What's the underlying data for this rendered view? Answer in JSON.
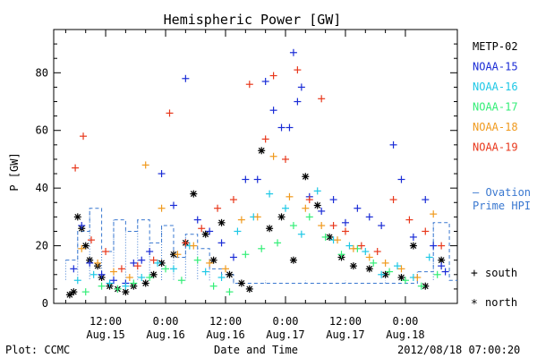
{
  "chart_data": {
    "type": "scatter",
    "title": "Hemispheric Power [GW]",
    "ylabel": "P [GW]",
    "xlabel": "Date and Time",
    "ylim": [
      0,
      95
    ],
    "y_ticks": [
      "0",
      "20",
      "40",
      "60",
      "80"
    ],
    "x_ticks": [
      {
        "time": "12:00",
        "date": "Aug.15"
      },
      {
        "time": "0:00",
        "date": "Aug.16"
      },
      {
        "time": "12:00",
        "date": "Aug.16"
      },
      {
        "time": "0:00",
        "date": "Aug.17"
      },
      {
        "time": "12:00",
        "date": "Aug.17"
      },
      {
        "time": "0:00",
        "date": "Aug.18"
      }
    ],
    "grid": false,
    "legend_position": "right",
    "legend": [
      {
        "name": "METP-02",
        "color": "#000000"
      },
      {
        "name": "NOAA-15",
        "color": "#1a2cd6"
      },
      {
        "name": "NOAA-16",
        "color": "#1ec8e6"
      },
      {
        "name": "NOAA-17",
        "color": "#33ee77"
      },
      {
        "name": "NOAA-18",
        "color": "#f09a1e"
      },
      {
        "name": "NOAA-19",
        "color": "#e8381c"
      }
    ],
    "ovation_label": [
      "— Ovation",
      "Prime HPI"
    ],
    "ovation_color": "#3a78d0",
    "marker_legend": [
      {
        "symbol": "+",
        "label": "south"
      },
      {
        "symbol": "*",
        "label": "north"
      }
    ],
    "series": [
      {
        "name": "METP-02",
        "marker": "*",
        "points": [
          [
            0.05,
            3
          ],
          [
            0.1,
            4
          ],
          [
            0.15,
            30
          ],
          [
            0.2,
            26
          ],
          [
            0.25,
            20
          ],
          [
            0.3,
            15
          ],
          [
            0.4,
            13
          ],
          [
            0.45,
            9
          ],
          [
            0.55,
            6
          ],
          [
            0.65,
            5
          ],
          [
            0.75,
            4
          ],
          [
            0.85,
            6
          ],
          [
            1.0,
            7
          ],
          [
            1.1,
            10
          ],
          [
            1.2,
            14
          ],
          [
            1.35,
            17
          ],
          [
            1.5,
            21
          ],
          [
            1.6,
            38
          ],
          [
            1.75,
            24
          ],
          [
            1.85,
            15
          ],
          [
            1.95,
            28
          ],
          [
            2.05,
            10
          ],
          [
            2.2,
            7
          ],
          [
            2.3,
            5
          ],
          [
            2.45,
            53
          ],
          [
            2.55,
            26
          ],
          [
            2.7,
            30
          ],
          [
            2.85,
            15
          ],
          [
            3.0,
            44
          ],
          [
            3.15,
            34
          ],
          [
            3.3,
            23
          ],
          [
            3.45,
            16
          ],
          [
            3.6,
            13
          ],
          [
            3.8,
            12
          ],
          [
            4.0,
            10
          ],
          [
            4.2,
            9
          ],
          [
            4.35,
            20
          ],
          [
            4.5,
            6
          ],
          [
            4.7,
            15
          ]
        ]
      },
      {
        "name": "NOAA-15",
        "marker": "+",
        "points": [
          [
            0.1,
            12
          ],
          [
            0.2,
            27
          ],
          [
            0.3,
            14
          ],
          [
            0.45,
            10
          ],
          [
            0.6,
            8
          ],
          [
            0.75,
            7
          ],
          [
            0.85,
            14
          ],
          [
            0.95,
            15
          ],
          [
            1.05,
            18
          ],
          [
            1.2,
            45
          ],
          [
            1.35,
            34
          ],
          [
            1.5,
            78
          ],
          [
            1.65,
            29
          ],
          [
            1.8,
            25
          ],
          [
            1.95,
            21
          ],
          [
            2.1,
            16
          ],
          [
            2.25,
            43
          ],
          [
            2.4,
            43
          ],
          [
            2.5,
            77
          ],
          [
            2.6,
            67
          ],
          [
            2.7,
            61
          ],
          [
            2.8,
            61
          ],
          [
            2.85,
            87
          ],
          [
            2.9,
            70
          ],
          [
            2.95,
            75
          ],
          [
            3.05,
            37
          ],
          [
            3.2,
            32
          ],
          [
            3.35,
            36
          ],
          [
            3.5,
            28
          ],
          [
            3.65,
            33
          ],
          [
            3.8,
            30
          ],
          [
            3.95,
            27
          ],
          [
            4.1,
            55
          ],
          [
            4.2,
            43
          ],
          [
            4.35,
            23
          ],
          [
            4.5,
            36
          ],
          [
            4.6,
            20
          ],
          [
            4.7,
            13
          ],
          [
            4.75,
            11
          ]
        ]
      },
      {
        "name": "NOAA-16",
        "marker": "+",
        "points": [
          [
            0.15,
            8
          ],
          [
            0.35,
            10
          ],
          [
            0.55,
            7
          ],
          [
            0.75,
            6
          ],
          [
            0.95,
            9
          ],
          [
            1.15,
            14
          ],
          [
            1.35,
            12
          ],
          [
            1.55,
            20
          ],
          [
            1.75,
            11
          ],
          [
            1.95,
            9
          ],
          [
            2.15,
            25
          ],
          [
            2.35,
            30
          ],
          [
            2.55,
            38
          ],
          [
            2.75,
            33
          ],
          [
            2.95,
            24
          ],
          [
            3.15,
            39
          ],
          [
            3.35,
            22
          ],
          [
            3.55,
            20
          ],
          [
            3.75,
            18
          ],
          [
            3.95,
            10
          ],
          [
            4.15,
            13
          ],
          [
            4.35,
            9
          ],
          [
            4.55,
            16
          ]
        ]
      },
      {
        "name": "NOAA-17",
        "marker": "+",
        "points": [
          [
            0.25,
            4
          ],
          [
            0.45,
            6
          ],
          [
            0.65,
            5
          ],
          [
            0.85,
            7
          ],
          [
            1.05,
            9
          ],
          [
            1.25,
            12
          ],
          [
            1.45,
            8
          ],
          [
            1.65,
            15
          ],
          [
            1.85,
            6
          ],
          [
            2.05,
            4
          ],
          [
            2.25,
            17
          ],
          [
            2.45,
            19
          ],
          [
            2.65,
            21
          ],
          [
            2.85,
            27
          ],
          [
            3.05,
            30
          ],
          [
            3.25,
            23
          ],
          [
            3.45,
            17
          ],
          [
            3.65,
            19
          ],
          [
            3.85,
            14
          ],
          [
            4.05,
            11
          ],
          [
            4.25,
            8
          ],
          [
            4.45,
            6
          ],
          [
            4.65,
            10
          ]
        ]
      },
      {
        "name": "NOAA-18",
        "marker": "+",
        "points": [
          [
            0.2,
            19
          ],
          [
            0.4,
            14
          ],
          [
            0.6,
            11
          ],
          [
            0.8,
            9
          ],
          [
            1.0,
            48
          ],
          [
            1.2,
            33
          ],
          [
            1.4,
            17
          ],
          [
            1.6,
            20
          ],
          [
            1.8,
            14
          ],
          [
            2.0,
            12
          ],
          [
            2.2,
            29
          ],
          [
            2.4,
            30
          ],
          [
            2.6,
            51
          ],
          [
            2.8,
            37
          ],
          [
            3.0,
            33
          ],
          [
            3.2,
            27
          ],
          [
            3.4,
            22
          ],
          [
            3.6,
            19
          ],
          [
            3.8,
            16
          ],
          [
            4.0,
            14
          ],
          [
            4.2,
            12
          ],
          [
            4.4,
            9
          ],
          [
            4.6,
            31
          ]
        ]
      },
      {
        "name": "NOAA-19",
        "marker": "+",
        "points": [
          [
            0.12,
            47
          ],
          [
            0.22,
            58
          ],
          [
            0.32,
            22
          ],
          [
            0.5,
            18
          ],
          [
            0.7,
            12
          ],
          [
            0.9,
            13
          ],
          [
            1.1,
            15
          ],
          [
            1.3,
            66
          ],
          [
            1.5,
            21
          ],
          [
            1.7,
            26
          ],
          [
            1.9,
            33
          ],
          [
            2.1,
            36
          ],
          [
            2.3,
            76
          ],
          [
            2.5,
            57
          ],
          [
            2.6,
            79
          ],
          [
            2.75,
            50
          ],
          [
            2.9,
            81
          ],
          [
            3.05,
            36
          ],
          [
            3.2,
            71
          ],
          [
            3.35,
            27
          ],
          [
            3.5,
            25
          ],
          [
            3.7,
            20
          ],
          [
            3.9,
            18
          ],
          [
            4.1,
            36
          ],
          [
            4.3,
            29
          ],
          [
            4.5,
            25
          ],
          [
            4.7,
            20
          ]
        ]
      },
      {
        "name": "Ovation Prime HPI",
        "marker": "step",
        "points": [
          [
            0.0,
            15
          ],
          [
            0.15,
            25
          ],
          [
            0.3,
            33
          ],
          [
            0.45,
            18
          ],
          [
            0.6,
            29
          ],
          [
            0.75,
            25
          ],
          [
            0.9,
            29
          ],
          [
            1.05,
            21
          ],
          [
            1.2,
            27
          ],
          [
            1.35,
            16
          ],
          [
            1.5,
            24
          ],
          [
            1.65,
            19
          ],
          [
            1.8,
            12
          ],
          [
            1.95,
            10
          ],
          [
            2.1,
            7
          ],
          [
            2.5,
            7
          ],
          [
            3.0,
            7
          ],
          [
            3.5,
            7
          ],
          [
            4.0,
            7
          ],
          [
            4.4,
            11
          ],
          [
            4.6,
            28
          ],
          [
            4.8,
            8
          ]
        ]
      }
    ]
  },
  "footer": {
    "plot_credit": "Plot: CCMC",
    "timestamp": "2012/08/18 07:00:20"
  }
}
